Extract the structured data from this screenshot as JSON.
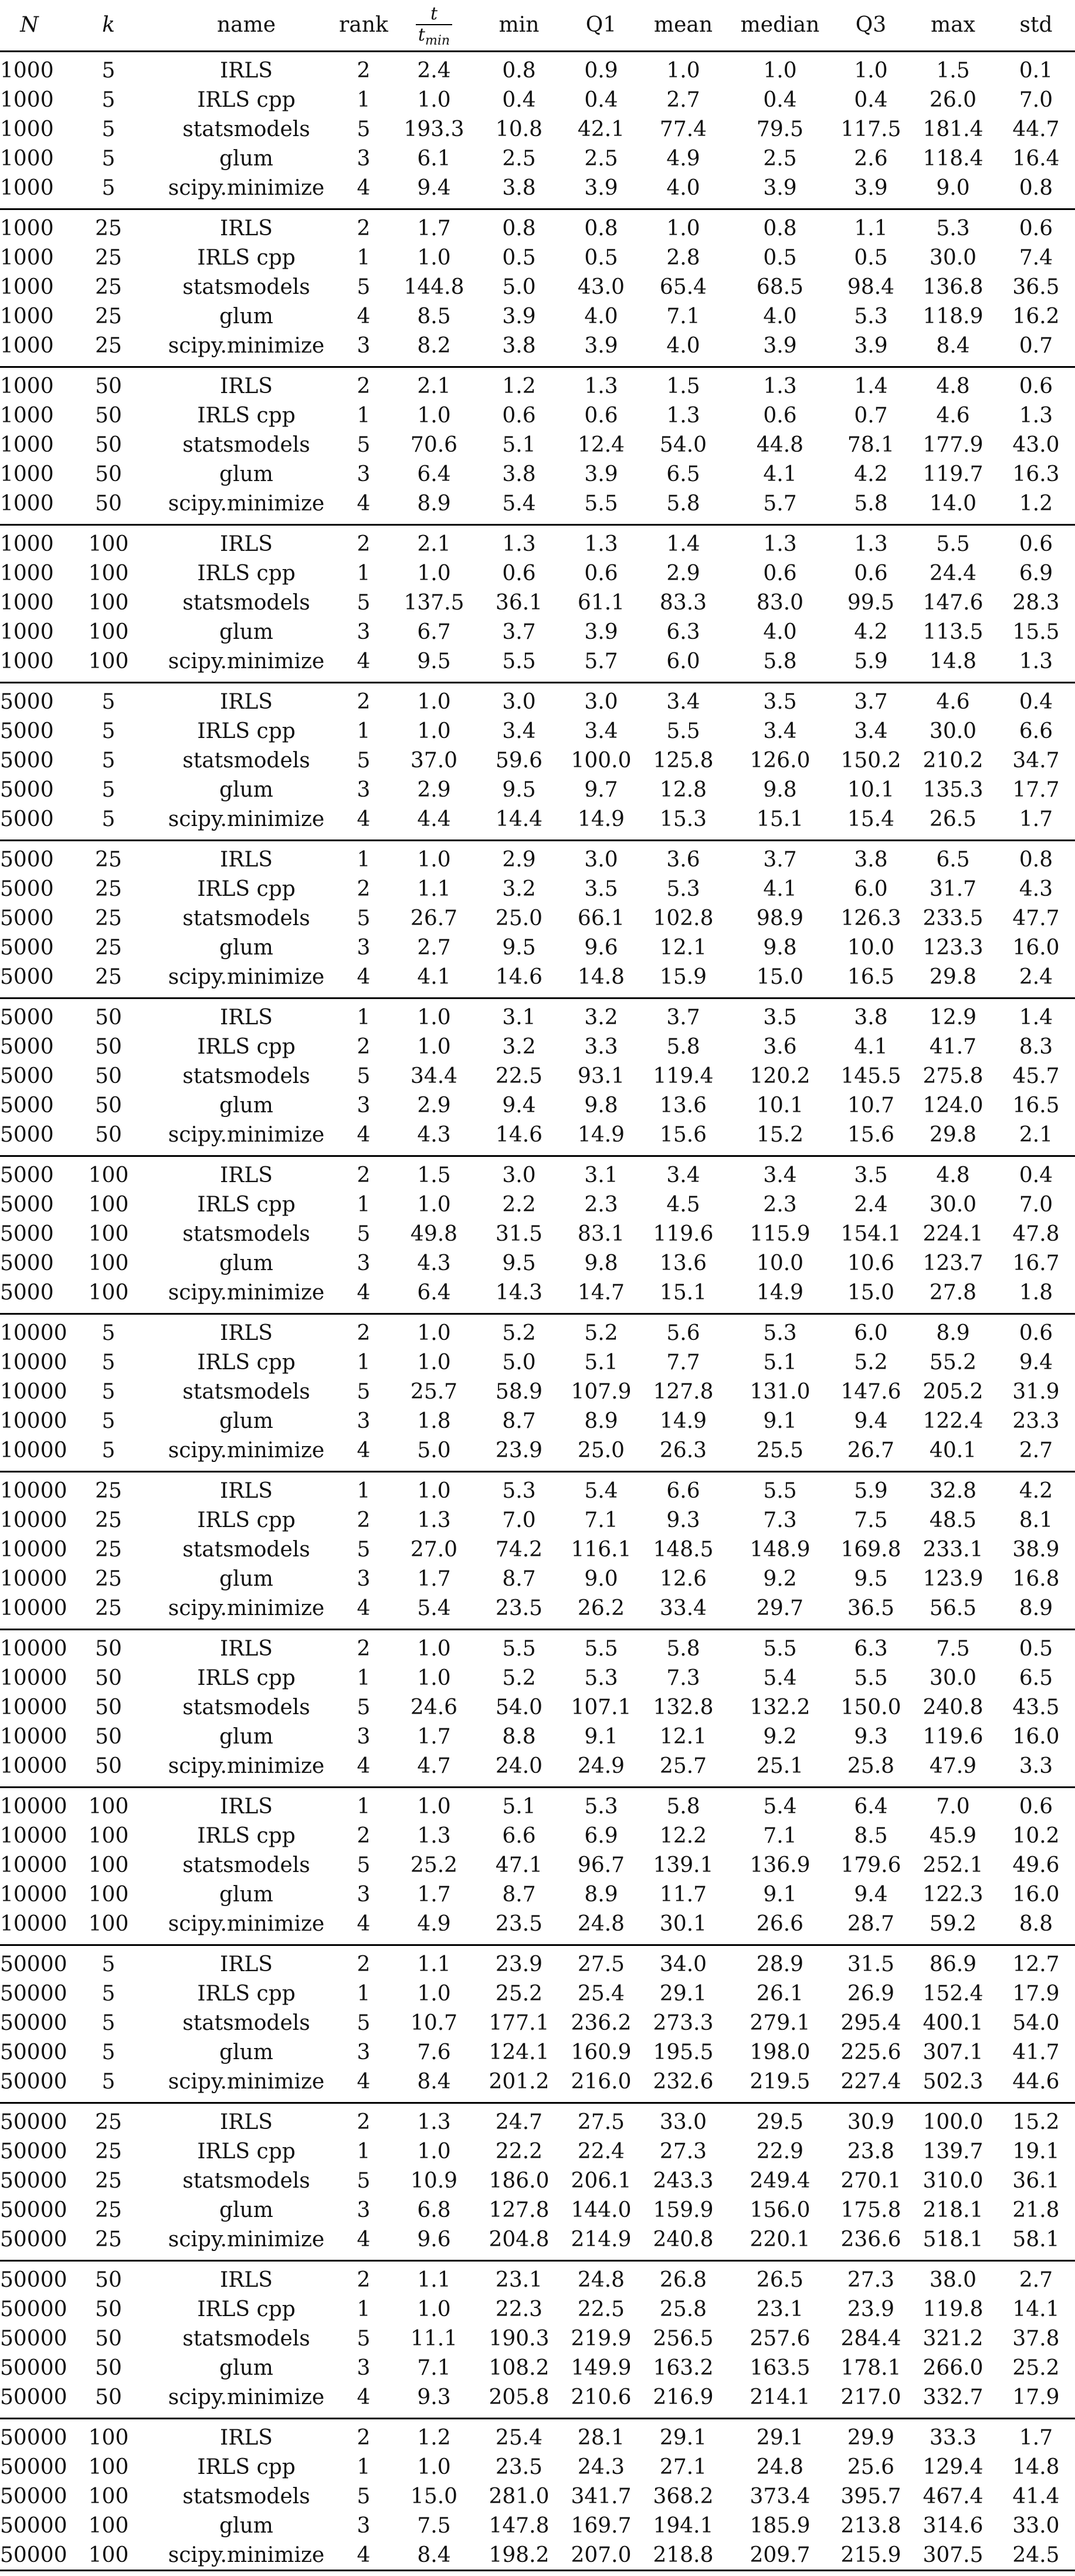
{
  "header": {
    "N": "N",
    "k": "k",
    "name": "name",
    "rank": "rank",
    "ratio_num": "t",
    "ratio_den_base": "t",
    "ratio_den_sub": "min",
    "min": "min",
    "q1": "Q1",
    "mean": "mean",
    "median": "median",
    "q3": "Q3",
    "max": "max",
    "std": "std"
  },
  "groups": [
    {
      "rows": [
        [
          "1000",
          "5",
          "IRLS",
          "2",
          "2.4",
          "0.8",
          "0.9",
          "1.0",
          "1.0",
          "1.0",
          "1.5",
          "0.1"
        ],
        [
          "1000",
          "5",
          "IRLS cpp",
          "1",
          "1.0",
          "0.4",
          "0.4",
          "2.7",
          "0.4",
          "0.4",
          "26.0",
          "7.0"
        ],
        [
          "1000",
          "5",
          "statsmodels",
          "5",
          "193.3",
          "10.8",
          "42.1",
          "77.4",
          "79.5",
          "117.5",
          "181.4",
          "44.7"
        ],
        [
          "1000",
          "5",
          "glum",
          "3",
          "6.1",
          "2.5",
          "2.5",
          "4.9",
          "2.5",
          "2.6",
          "118.4",
          "16.4"
        ],
        [
          "1000",
          "5",
          "scipy.minimize",
          "4",
          "9.4",
          "3.8",
          "3.9",
          "4.0",
          "3.9",
          "3.9",
          "9.0",
          "0.8"
        ]
      ]
    },
    {
      "rows": [
        [
          "1000",
          "25",
          "IRLS",
          "2",
          "1.7",
          "0.8",
          "0.8",
          "1.0",
          "0.8",
          "1.1",
          "5.3",
          "0.6"
        ],
        [
          "1000",
          "25",
          "IRLS cpp",
          "1",
          "1.0",
          "0.5",
          "0.5",
          "2.8",
          "0.5",
          "0.5",
          "30.0",
          "7.4"
        ],
        [
          "1000",
          "25",
          "statsmodels",
          "5",
          "144.8",
          "5.0",
          "43.0",
          "65.4",
          "68.5",
          "98.4",
          "136.8",
          "36.5"
        ],
        [
          "1000",
          "25",
          "glum",
          "4",
          "8.5",
          "3.9",
          "4.0",
          "7.1",
          "4.0",
          "5.3",
          "118.9",
          "16.2"
        ],
        [
          "1000",
          "25",
          "scipy.minimize",
          "3",
          "8.2",
          "3.8",
          "3.9",
          "4.0",
          "3.9",
          "3.9",
          "8.4",
          "0.7"
        ]
      ]
    },
    {
      "rows": [
        [
          "1000",
          "50",
          "IRLS",
          "2",
          "2.1",
          "1.2",
          "1.3",
          "1.5",
          "1.3",
          "1.4",
          "4.8",
          "0.6"
        ],
        [
          "1000",
          "50",
          "IRLS cpp",
          "1",
          "1.0",
          "0.6",
          "0.6",
          "1.3",
          "0.6",
          "0.7",
          "4.6",
          "1.3"
        ],
        [
          "1000",
          "50",
          "statsmodels",
          "5",
          "70.6",
          "5.1",
          "12.4",
          "54.0",
          "44.8",
          "78.1",
          "177.9",
          "43.0"
        ],
        [
          "1000",
          "50",
          "glum",
          "3",
          "6.4",
          "3.8",
          "3.9",
          "6.5",
          "4.1",
          "4.2",
          "119.7",
          "16.3"
        ],
        [
          "1000",
          "50",
          "scipy.minimize",
          "4",
          "8.9",
          "5.4",
          "5.5",
          "5.8",
          "5.7",
          "5.8",
          "14.0",
          "1.2"
        ]
      ]
    },
    {
      "rows": [
        [
          "1000",
          "100",
          "IRLS",
          "2",
          "2.1",
          "1.3",
          "1.3",
          "1.4",
          "1.3",
          "1.3",
          "5.5",
          "0.6"
        ],
        [
          "1000",
          "100",
          "IRLS cpp",
          "1",
          "1.0",
          "0.6",
          "0.6",
          "2.9",
          "0.6",
          "0.6",
          "24.4",
          "6.9"
        ],
        [
          "1000",
          "100",
          "statsmodels",
          "5",
          "137.5",
          "36.1",
          "61.1",
          "83.3",
          "83.0",
          "99.5",
          "147.6",
          "28.3"
        ],
        [
          "1000",
          "100",
          "glum",
          "3",
          "6.7",
          "3.7",
          "3.9",
          "6.3",
          "4.0",
          "4.2",
          "113.5",
          "15.5"
        ],
        [
          "1000",
          "100",
          "scipy.minimize",
          "4",
          "9.5",
          "5.5",
          "5.7",
          "6.0",
          "5.8",
          "5.9",
          "14.8",
          "1.3"
        ]
      ]
    },
    {
      "rows": [
        [
          "5000",
          "5",
          "IRLS",
          "2",
          "1.0",
          "3.0",
          "3.0",
          "3.4",
          "3.5",
          "3.7",
          "4.6",
          "0.4"
        ],
        [
          "5000",
          "5",
          "IRLS cpp",
          "1",
          "1.0",
          "3.4",
          "3.4",
          "5.5",
          "3.4",
          "3.4",
          "30.0",
          "6.6"
        ],
        [
          "5000",
          "5",
          "statsmodels",
          "5",
          "37.0",
          "59.6",
          "100.0",
          "125.8",
          "126.0",
          "150.2",
          "210.2",
          "34.7"
        ],
        [
          "5000",
          "5",
          "glum",
          "3",
          "2.9",
          "9.5",
          "9.7",
          "12.8",
          "9.8",
          "10.1",
          "135.3",
          "17.7"
        ],
        [
          "5000",
          "5",
          "scipy.minimize",
          "4",
          "4.4",
          "14.4",
          "14.9",
          "15.3",
          "15.1",
          "15.4",
          "26.5",
          "1.7"
        ]
      ]
    },
    {
      "rows": [
        [
          "5000",
          "25",
          "IRLS",
          "1",
          "1.0",
          "2.9",
          "3.0",
          "3.6",
          "3.7",
          "3.8",
          "6.5",
          "0.8"
        ],
        [
          "5000",
          "25",
          "IRLS cpp",
          "2",
          "1.1",
          "3.2",
          "3.5",
          "5.3",
          "4.1",
          "6.0",
          "31.7",
          "4.3"
        ],
        [
          "5000",
          "25",
          "statsmodels",
          "5",
          "26.7",
          "25.0",
          "66.1",
          "102.8",
          "98.9",
          "126.3",
          "233.5",
          "47.7"
        ],
        [
          "5000",
          "25",
          "glum",
          "3",
          "2.7",
          "9.5",
          "9.6",
          "12.1",
          "9.8",
          "10.0",
          "123.3",
          "16.0"
        ],
        [
          "5000",
          "25",
          "scipy.minimize",
          "4",
          "4.1",
          "14.6",
          "14.8",
          "15.9",
          "15.0",
          "16.5",
          "29.8",
          "2.4"
        ]
      ]
    },
    {
      "rows": [
        [
          "5000",
          "50",
          "IRLS",
          "1",
          "1.0",
          "3.1",
          "3.2",
          "3.7",
          "3.5",
          "3.8",
          "12.9",
          "1.4"
        ],
        [
          "5000",
          "50",
          "IRLS cpp",
          "2",
          "1.0",
          "3.2",
          "3.3",
          "5.8",
          "3.6",
          "4.1",
          "41.7",
          "8.3"
        ],
        [
          "5000",
          "50",
          "statsmodels",
          "5",
          "34.4",
          "22.5",
          "93.1",
          "119.4",
          "120.2",
          "145.5",
          "275.8",
          "45.7"
        ],
        [
          "5000",
          "50",
          "glum",
          "3",
          "2.9",
          "9.4",
          "9.8",
          "13.6",
          "10.1",
          "10.7",
          "124.0",
          "16.5"
        ],
        [
          "5000",
          "50",
          "scipy.minimize",
          "4",
          "4.3",
          "14.6",
          "14.9",
          "15.6",
          "15.2",
          "15.6",
          "29.8",
          "2.1"
        ]
      ]
    },
    {
      "rows": [
        [
          "5000",
          "100",
          "IRLS",
          "2",
          "1.5",
          "3.0",
          "3.1",
          "3.4",
          "3.4",
          "3.5",
          "4.8",
          "0.4"
        ],
        [
          "5000",
          "100",
          "IRLS cpp",
          "1",
          "1.0",
          "2.2",
          "2.3",
          "4.5",
          "2.3",
          "2.4",
          "30.0",
          "7.0"
        ],
        [
          "5000",
          "100",
          "statsmodels",
          "5",
          "49.8",
          "31.5",
          "83.1",
          "119.6",
          "115.9",
          "154.1",
          "224.1",
          "47.8"
        ],
        [
          "5000",
          "100",
          "glum",
          "3",
          "4.3",
          "9.5",
          "9.8",
          "13.6",
          "10.0",
          "10.6",
          "123.7",
          "16.7"
        ],
        [
          "5000",
          "100",
          "scipy.minimize",
          "4",
          "6.4",
          "14.3",
          "14.7",
          "15.1",
          "14.9",
          "15.0",
          "27.8",
          "1.8"
        ]
      ]
    },
    {
      "rows": [
        [
          "10000",
          "5",
          "IRLS",
          "2",
          "1.0",
          "5.2",
          "5.2",
          "5.6",
          "5.3",
          "6.0",
          "8.9",
          "0.6"
        ],
        [
          "10000",
          "5",
          "IRLS cpp",
          "1",
          "1.0",
          "5.0",
          "5.1",
          "7.7",
          "5.1",
          "5.2",
          "55.2",
          "9.4"
        ],
        [
          "10000",
          "5",
          "statsmodels",
          "5",
          "25.7",
          "58.9",
          "107.9",
          "127.8",
          "131.0",
          "147.6",
          "205.2",
          "31.9"
        ],
        [
          "10000",
          "5",
          "glum",
          "3",
          "1.8",
          "8.7",
          "8.9",
          "14.9",
          "9.1",
          "9.4",
          "122.4",
          "23.3"
        ],
        [
          "10000",
          "5",
          "scipy.minimize",
          "4",
          "5.0",
          "23.9",
          "25.0",
          "26.3",
          "25.5",
          "26.7",
          "40.1",
          "2.7"
        ]
      ]
    },
    {
      "rows": [
        [
          "10000",
          "25",
          "IRLS",
          "1",
          "1.0",
          "5.3",
          "5.4",
          "6.6",
          "5.5",
          "5.9",
          "32.8",
          "4.2"
        ],
        [
          "10000",
          "25",
          "IRLS cpp",
          "2",
          "1.3",
          "7.0",
          "7.1",
          "9.3",
          "7.3",
          "7.5",
          "48.5",
          "8.1"
        ],
        [
          "10000",
          "25",
          "statsmodels",
          "5",
          "27.0",
          "74.2",
          "116.1",
          "148.5",
          "148.9",
          "169.8",
          "233.1",
          "38.9"
        ],
        [
          "10000",
          "25",
          "glum",
          "3",
          "1.7",
          "8.7",
          "9.0",
          "12.6",
          "9.2",
          "9.5",
          "123.9",
          "16.8"
        ],
        [
          "10000",
          "25",
          "scipy.minimize",
          "4",
          "5.4",
          "23.5",
          "26.2",
          "33.4",
          "29.7",
          "36.5",
          "56.5",
          "8.9"
        ]
      ]
    },
    {
      "rows": [
        [
          "10000",
          "50",
          "IRLS",
          "2",
          "1.0",
          "5.5",
          "5.5",
          "5.8",
          "5.5",
          "6.3",
          "7.5",
          "0.5"
        ],
        [
          "10000",
          "50",
          "IRLS cpp",
          "1",
          "1.0",
          "5.2",
          "5.3",
          "7.3",
          "5.4",
          "5.5",
          "30.0",
          "6.5"
        ],
        [
          "10000",
          "50",
          "statsmodels",
          "5",
          "24.6",
          "54.0",
          "107.1",
          "132.8",
          "132.2",
          "150.0",
          "240.8",
          "43.5"
        ],
        [
          "10000",
          "50",
          "glum",
          "3",
          "1.7",
          "8.8",
          "9.1",
          "12.1",
          "9.2",
          "9.3",
          "119.6",
          "16.0"
        ],
        [
          "10000",
          "50",
          "scipy.minimize",
          "4",
          "4.7",
          "24.0",
          "24.9",
          "25.7",
          "25.1",
          "25.8",
          "47.9",
          "3.3"
        ]
      ]
    },
    {
      "rows": [
        [
          "10000",
          "100",
          "IRLS",
          "1",
          "1.0",
          "5.1",
          "5.3",
          "5.8",
          "5.4",
          "6.4",
          "7.0",
          "0.6"
        ],
        [
          "10000",
          "100",
          "IRLS cpp",
          "2",
          "1.3",
          "6.6",
          "6.9",
          "12.2",
          "7.1",
          "8.5",
          "45.9",
          "10.2"
        ],
        [
          "10000",
          "100",
          "statsmodels",
          "5",
          "25.2",
          "47.1",
          "96.7",
          "139.1",
          "136.9",
          "179.6",
          "252.1",
          "49.6"
        ],
        [
          "10000",
          "100",
          "glum",
          "3",
          "1.7",
          "8.7",
          "8.9",
          "11.7",
          "9.1",
          "9.4",
          "122.3",
          "16.0"
        ],
        [
          "10000",
          "100",
          "scipy.minimize",
          "4",
          "4.9",
          "23.5",
          "24.8",
          "30.1",
          "26.6",
          "28.7",
          "59.2",
          "8.8"
        ]
      ]
    },
    {
      "rows": [
        [
          "50000",
          "5",
          "IRLS",
          "2",
          "1.1",
          "23.9",
          "27.5",
          "34.0",
          "28.9",
          "31.5",
          "86.9",
          "12.7"
        ],
        [
          "50000",
          "5",
          "IRLS cpp",
          "1",
          "1.0",
          "25.2",
          "25.4",
          "29.1",
          "26.1",
          "26.9",
          "152.4",
          "17.9"
        ],
        [
          "50000",
          "5",
          "statsmodels",
          "5",
          "10.7",
          "177.1",
          "236.2",
          "273.3",
          "279.1",
          "295.4",
          "400.1",
          "54.0"
        ],
        [
          "50000",
          "5",
          "glum",
          "3",
          "7.6",
          "124.1",
          "160.9",
          "195.5",
          "198.0",
          "225.6",
          "307.1",
          "41.7"
        ],
        [
          "50000",
          "5",
          "scipy.minimize",
          "4",
          "8.4",
          "201.2",
          "216.0",
          "232.6",
          "219.5",
          "227.4",
          "502.3",
          "44.6"
        ]
      ]
    },
    {
      "rows": [
        [
          "50000",
          "25",
          "IRLS",
          "2",
          "1.3",
          "24.7",
          "27.5",
          "33.0",
          "29.5",
          "30.9",
          "100.0",
          "15.2"
        ],
        [
          "50000",
          "25",
          "IRLS cpp",
          "1",
          "1.0",
          "22.2",
          "22.4",
          "27.3",
          "22.9",
          "23.8",
          "139.7",
          "19.1"
        ],
        [
          "50000",
          "25",
          "statsmodels",
          "5",
          "10.9",
          "186.0",
          "206.1",
          "243.3",
          "249.4",
          "270.1",
          "310.0",
          "36.1"
        ],
        [
          "50000",
          "25",
          "glum",
          "3",
          "6.8",
          "127.8",
          "144.0",
          "159.9",
          "156.0",
          "175.8",
          "218.1",
          "21.8"
        ],
        [
          "50000",
          "25",
          "scipy.minimize",
          "4",
          "9.6",
          "204.8",
          "214.9",
          "240.8",
          "220.1",
          "236.6",
          "518.1",
          "58.1"
        ]
      ]
    },
    {
      "rows": [
        [
          "50000",
          "50",
          "IRLS",
          "2",
          "1.1",
          "23.1",
          "24.8",
          "26.8",
          "26.5",
          "27.3",
          "38.0",
          "2.7"
        ],
        [
          "50000",
          "50",
          "IRLS cpp",
          "1",
          "1.0",
          "22.3",
          "22.5",
          "25.8",
          "23.1",
          "23.9",
          "119.8",
          "14.1"
        ],
        [
          "50000",
          "50",
          "statsmodels",
          "5",
          "11.1",
          "190.3",
          "219.9",
          "256.5",
          "257.6",
          "284.4",
          "321.2",
          "37.8"
        ],
        [
          "50000",
          "50",
          "glum",
          "3",
          "7.1",
          "108.2",
          "149.9",
          "163.2",
          "163.5",
          "178.1",
          "266.0",
          "25.2"
        ],
        [
          "50000",
          "50",
          "scipy.minimize",
          "4",
          "9.3",
          "205.8",
          "210.6",
          "216.9",
          "214.1",
          "217.0",
          "332.7",
          "17.9"
        ]
      ]
    },
    {
      "rows": [
        [
          "50000",
          "100",
          "IRLS",
          "2",
          "1.2",
          "25.4",
          "28.1",
          "29.1",
          "29.1",
          "29.9",
          "33.3",
          "1.7"
        ],
        [
          "50000",
          "100",
          "IRLS cpp",
          "1",
          "1.0",
          "23.5",
          "24.3",
          "27.1",
          "24.8",
          "25.6",
          "129.4",
          "14.8"
        ],
        [
          "50000",
          "100",
          "statsmodels",
          "5",
          "15.0",
          "281.0",
          "341.7",
          "368.2",
          "373.4",
          "395.7",
          "467.4",
          "41.4"
        ],
        [
          "50000",
          "100",
          "glum",
          "3",
          "7.5",
          "147.8",
          "169.7",
          "194.1",
          "185.9",
          "213.8",
          "314.6",
          "33.0"
        ],
        [
          "50000",
          "100",
          "scipy.minimize",
          "4",
          "8.4",
          "198.2",
          "207.0",
          "218.8",
          "209.7",
          "215.9",
          "307.5",
          "24.5"
        ]
      ]
    }
  ]
}
